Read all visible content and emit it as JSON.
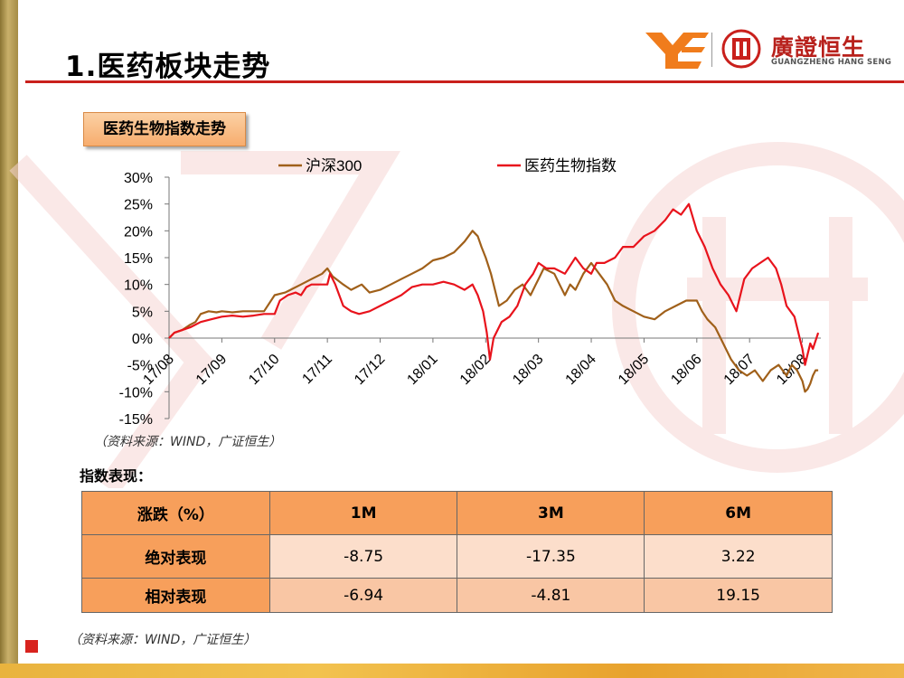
{
  "page": {
    "title": "1.医药板块走势",
    "chart_header": "医药生物指数走势",
    "source_note": "（资料来源：WIND，广证恒生）",
    "performance_title": "指数表现："
  },
  "logo": {
    "brand_cn": "廣證恒生",
    "brand_en": "GUANGZHENG HANG SENG",
    "mark_left": "YE",
    "colors": {
      "orange": "#f07c1c",
      "red": "#c9201c"
    }
  },
  "colors": {
    "hs300": "#a0601a",
    "pharma": "#e8131c",
    "accent": "#c9201c"
  },
  "chart_data": {
    "type": "line",
    "title": "",
    "xlabel": "",
    "ylabel": "",
    "ylim": [
      -0.15,
      0.3
    ],
    "yticks": [
      -0.15,
      -0.1,
      -0.05,
      0.0,
      0.05,
      0.1,
      0.15,
      0.2,
      0.25,
      0.3
    ],
    "ytick_labels": [
      "-15%",
      "-10%",
      "-5%",
      "0%",
      "5%",
      "10%",
      "15%",
      "20%",
      "25%",
      "30%"
    ],
    "x_month_labels": [
      "17/08",
      "17/09",
      "17/10",
      "17/11",
      "17/12",
      "18/01",
      "18/02",
      "18/03",
      "18/04",
      "18/05",
      "18/06",
      "18/07",
      "18/08"
    ],
    "x_range": [
      0,
      12.35
    ],
    "legend_position": "top",
    "grid": false,
    "series": [
      {
        "name": "沪深300",
        "x": [
          0,
          0.1,
          0.25,
          0.4,
          0.5,
          0.6,
          0.75,
          0.9,
          1.0,
          1.2,
          1.4,
          1.6,
          1.8,
          2.0,
          2.2,
          2.3,
          2.5,
          2.7,
          2.9,
          3.0,
          3.1,
          3.3,
          3.45,
          3.55,
          3.65,
          3.8,
          4.0,
          4.2,
          4.4,
          4.6,
          4.8,
          5.0,
          5.2,
          5.4,
          5.6,
          5.75,
          5.85,
          5.92,
          6.0,
          6.1,
          6.25,
          6.4,
          6.55,
          6.7,
          6.85,
          6.95,
          7.0,
          7.1,
          7.3,
          7.4,
          7.5,
          7.6,
          7.7,
          7.85,
          8.0,
          8.15,
          8.3,
          8.45,
          8.6,
          8.8,
          9.0,
          9.2,
          9.4,
          9.6,
          9.8,
          10.0,
          10.1,
          10.2,
          10.35,
          10.5,
          10.65,
          10.8,
          10.95,
          11.1,
          11.25,
          11.4,
          11.55,
          11.7,
          11.8,
          11.9,
          11.95,
          12.0,
          12.05,
          12.1,
          12.15,
          12.2,
          12.25,
          12.3
        ],
        "values": [
          0.0,
          0.01,
          0.015,
          0.025,
          0.03,
          0.045,
          0.05,
          0.048,
          0.05,
          0.048,
          0.05,
          0.05,
          0.05,
          0.08,
          0.085,
          0.09,
          0.1,
          0.11,
          0.12,
          0.13,
          0.115,
          0.1,
          0.09,
          0.095,
          0.1,
          0.085,
          0.09,
          0.1,
          0.11,
          0.12,
          0.13,
          0.145,
          0.15,
          0.16,
          0.18,
          0.2,
          0.19,
          0.17,
          0.15,
          0.12,
          0.06,
          0.07,
          0.09,
          0.1,
          0.08,
          0.1,
          0.11,
          0.13,
          0.12,
          0.1,
          0.08,
          0.1,
          0.09,
          0.12,
          0.14,
          0.12,
          0.1,
          0.07,
          0.06,
          0.05,
          0.04,
          0.035,
          0.05,
          0.06,
          0.07,
          0.07,
          0.05,
          0.035,
          0.02,
          -0.01,
          -0.04,
          -0.06,
          -0.07,
          -0.06,
          -0.08,
          -0.06,
          -0.05,
          -0.07,
          -0.05,
          -0.06,
          -0.07,
          -0.08,
          -0.1,
          -0.095,
          -0.085,
          -0.07,
          -0.06,
          -0.06
        ]
      },
      {
        "name": "医药生物指数",
        "x": [
          0,
          0.1,
          0.25,
          0.4,
          0.6,
          0.8,
          1.0,
          1.2,
          1.4,
          1.6,
          1.8,
          2.0,
          2.1,
          2.25,
          2.4,
          2.5,
          2.6,
          2.7,
          2.85,
          3.0,
          3.05,
          3.15,
          3.3,
          3.45,
          3.6,
          3.8,
          4.0,
          4.2,
          4.4,
          4.6,
          4.8,
          5.0,
          5.2,
          5.4,
          5.6,
          5.75,
          5.85,
          5.95,
          6.02,
          6.08,
          6.15,
          6.3,
          6.45,
          6.6,
          6.75,
          6.9,
          7.0,
          7.15,
          7.3,
          7.5,
          7.7,
          7.85,
          8.0,
          8.1,
          8.25,
          8.45,
          8.6,
          8.8,
          9.0,
          9.2,
          9.4,
          9.55,
          9.7,
          9.85,
          10.0,
          10.15,
          10.3,
          10.45,
          10.6,
          10.75,
          10.9,
          11.05,
          11.2,
          11.35,
          11.5,
          11.6,
          11.7,
          11.85,
          11.95,
          12.0,
          12.05,
          12.1,
          12.15,
          12.2,
          12.3
        ],
        "values": [
          0.0,
          0.01,
          0.015,
          0.02,
          0.03,
          0.035,
          0.04,
          0.042,
          0.04,
          0.042,
          0.045,
          0.045,
          0.07,
          0.08,
          0.085,
          0.08,
          0.095,
          0.1,
          0.1,
          0.1,
          0.12,
          0.1,
          0.06,
          0.05,
          0.045,
          0.05,
          0.06,
          0.07,
          0.08,
          0.095,
          0.1,
          0.1,
          0.105,
          0.1,
          0.09,
          0.1,
          0.08,
          0.05,
          0.01,
          -0.04,
          0.0,
          0.03,
          0.04,
          0.06,
          0.1,
          0.12,
          0.14,
          0.13,
          0.13,
          0.12,
          0.15,
          0.13,
          0.12,
          0.14,
          0.14,
          0.15,
          0.17,
          0.17,
          0.19,
          0.2,
          0.22,
          0.24,
          0.23,
          0.25,
          0.2,
          0.17,
          0.13,
          0.1,
          0.08,
          0.05,
          0.11,
          0.13,
          0.14,
          0.15,
          0.13,
          0.1,
          0.06,
          0.04,
          0.0,
          -0.02,
          -0.05,
          -0.03,
          -0.01,
          -0.02,
          0.01
        ]
      }
    ]
  },
  "table": {
    "headers": [
      "涨跌（%）",
      "1M",
      "3M",
      "6M"
    ],
    "rows": [
      {
        "label": "绝对表现",
        "values": [
          "-8.75",
          "-17.35",
          "3.22"
        ]
      },
      {
        "label": "相对表现",
        "values": [
          "-6.94",
          "-4.81",
          "19.15"
        ]
      }
    ]
  }
}
